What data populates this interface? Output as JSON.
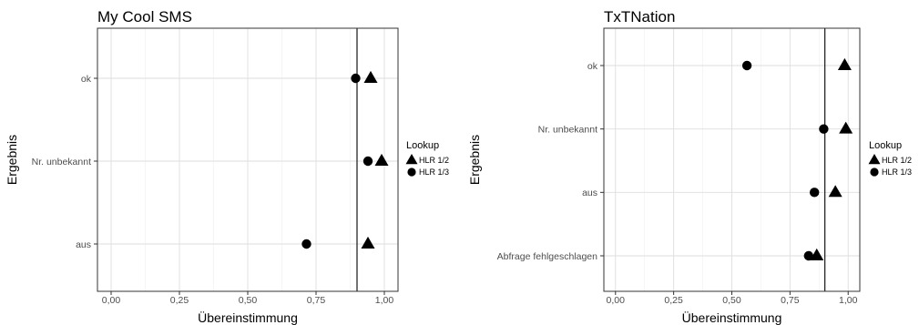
{
  "chart_data": [
    {
      "type": "scatter",
      "title": "My Cool SMS",
      "xlabel": "Übereinstimmung",
      "ylabel": "Ergebnis",
      "xlim": [
        -0.05,
        1.05
      ],
      "x_ticks": [
        "0,00",
        "0,25",
        "0,50",
        "0,75",
        "1,00"
      ],
      "x_tick_values": [
        0,
        0.25,
        0.5,
        0.75,
        1
      ],
      "categories": [
        "ok",
        "Nr. unbekannt",
        "aus"
      ],
      "reference_line_x": 0.9,
      "grid": true,
      "legend": {
        "title": "Lookup",
        "placement": "right"
      },
      "series": [
        {
          "name": "HLR 1/2",
          "shape": "triangle",
          "values": [
            0.95,
            0.99,
            0.94
          ]
        },
        {
          "name": "HLR 1/3",
          "shape": "circle",
          "values": [
            0.895,
            0.94,
            0.715
          ]
        }
      ]
    },
    {
      "type": "scatter",
      "title": "TxTNation",
      "xlabel": "Übereinstimmung",
      "ylabel": "Ergebnis",
      "xlim": [
        -0.05,
        1.05
      ],
      "x_ticks": [
        "0,00",
        "0,25",
        "0,50",
        "0,75",
        "1,00"
      ],
      "x_tick_values": [
        0,
        0.25,
        0.5,
        0.75,
        1
      ],
      "categories": [
        "ok",
        "Nr. unbekannt",
        "aus",
        "Abfrage fehlgeschlagen"
      ],
      "reference_line_x": 0.9,
      "grid": true,
      "legend": {
        "title": "Lookup",
        "placement": "right"
      },
      "series": [
        {
          "name": "HLR 1/2",
          "shape": "triangle",
          "values": [
            0.985,
            0.99,
            0.945,
            0.865
          ]
        },
        {
          "name": "HLR 1/3",
          "shape": "circle",
          "values": [
            0.565,
            0.895,
            0.855,
            0.83
          ]
        }
      ]
    }
  ]
}
